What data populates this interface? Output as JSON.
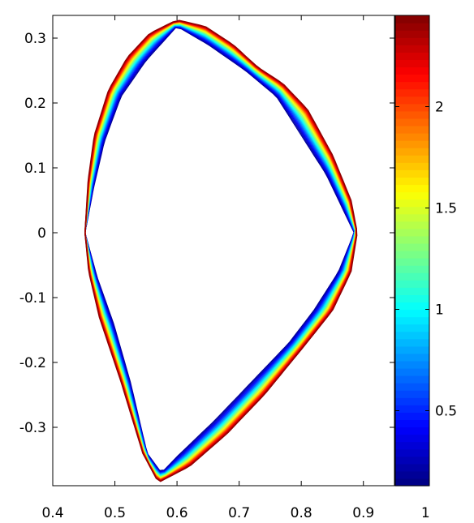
{
  "chart_data": {
    "type": "contour",
    "title": "",
    "xlabel": "",
    "ylabel": "",
    "xlim": [
      0.4,
      0.95
    ],
    "ylim": [
      -0.39,
      0.335
    ],
    "x_ticks": [
      0.4,
      0.5,
      0.6,
      0.7,
      0.8,
      0.9,
      1
    ],
    "x_tick_labels": [
      "0.4",
      "0.5",
      "0.6",
      "0.7",
      "0.8",
      "0.9",
      "1"
    ],
    "y_ticks": [
      -0.3,
      -0.2,
      -0.1,
      0,
      0.1,
      0.2,
      0.3
    ],
    "y_tick_labels": [
      "-0.3",
      "-0.2",
      "-0.1",
      "0",
      "0.1",
      "0.2",
      "0.3"
    ],
    "grid": false,
    "colormap": "jet",
    "colorbar": {
      "range": [
        0.13,
        2.45
      ],
      "ticks": [
        0.5,
        1,
        1.5,
        2
      ],
      "tick_labels": [
        "0.5",
        "1",
        "1.5",
        "2"
      ]
    },
    "outer_boundary": [
      [
        0.452,
        0.0
      ],
      [
        0.457,
        0.08
      ],
      [
        0.467,
        0.15
      ],
      [
        0.49,
        0.22
      ],
      [
        0.52,
        0.27
      ],
      [
        0.556,
        0.307
      ],
      [
        0.6,
        0.328
      ],
      [
        0.645,
        0.318
      ],
      [
        0.69,
        0.29
      ],
      [
        0.73,
        0.255
      ],
      [
        0.77,
        0.23
      ],
      [
        0.81,
        0.19
      ],
      [
        0.85,
        0.12
      ],
      [
        0.88,
        0.05
      ],
      [
        0.89,
        0.0
      ],
      [
        0.88,
        -0.06
      ],
      [
        0.85,
        -0.12
      ],
      [
        0.8,
        -0.18
      ],
      [
        0.74,
        -0.25
      ],
      [
        0.68,
        -0.31
      ],
      [
        0.62,
        -0.36
      ],
      [
        0.57,
        -0.385
      ],
      [
        0.545,
        -0.34
      ],
      [
        0.51,
        -0.23
      ],
      [
        0.475,
        -0.13
      ],
      [
        0.458,
        -0.06
      ]
    ],
    "inner_boundary": [
      [
        0.452,
        0.0
      ],
      [
        0.466,
        0.07
      ],
      [
        0.483,
        0.14
      ],
      [
        0.51,
        0.21
      ],
      [
        0.55,
        0.265
      ],
      [
        0.6,
        0.318
      ],
      [
        0.65,
        0.29
      ],
      [
        0.71,
        0.25
      ],
      [
        0.76,
        0.21
      ],
      [
        0.8,
        0.15
      ],
      [
        0.84,
        0.09
      ],
      [
        0.865,
        0.04
      ],
      [
        0.885,
        0.0
      ],
      [
        0.86,
        -0.06
      ],
      [
        0.82,
        -0.12
      ],
      [
        0.78,
        -0.17
      ],
      [
        0.72,
        -0.23
      ],
      [
        0.66,
        -0.29
      ],
      [
        0.6,
        -0.345
      ],
      [
        0.575,
        -0.37
      ],
      [
        0.552,
        -0.34
      ],
      [
        0.525,
        -0.23
      ],
      [
        0.498,
        -0.14
      ],
      [
        0.472,
        -0.07
      ]
    ],
    "levels": 26
  }
}
